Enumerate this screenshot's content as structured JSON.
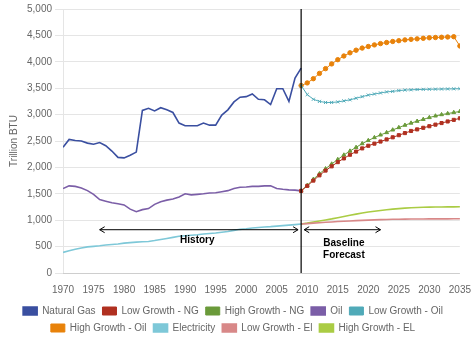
{
  "chart_data": {
    "type": "line",
    "ylabel": "Trillion BTU",
    "xlim": [
      1970,
      2035
    ],
    "ylim": [
      0,
      5000
    ],
    "xticks": [
      1970,
      1975,
      1980,
      1985,
      1990,
      1995,
      2000,
      2005,
      2010,
      2015,
      2020,
      2025,
      2030,
      2035
    ],
    "yticks": [
      0,
      500,
      {
        "value": 1000,
        "label": "1,000"
      },
      {
        "value": 1500,
        "label": "1,500"
      },
      {
        "value": 2000,
        "label": "2,000"
      },
      {
        "value": 2500,
        "label": "2,500"
      },
      {
        "value": 3000,
        "label": "3,000"
      },
      {
        "value": 3500,
        "label": "3,500"
      },
      {
        "value": 4000,
        "label": "4,000"
      },
      {
        "value": 4500,
        "label": "4,500"
      },
      {
        "value": 5000,
        "label": "5,000"
      }
    ],
    "grid": "y",
    "legend": "bottom",
    "vline": 2009,
    "arrows": [
      {
        "x": [
          1976,
          2008.5
        ],
        "y": 820
      },
      {
        "x": [
          2009.5,
          2022
        ],
        "y": 820
      }
    ],
    "annotations": [
      {
        "text": "History",
        "x": 1992,
        "y": 750
      },
      {
        "text": "Baseline\nForecast",
        "x": 2016,
        "y": 700
      }
    ],
    "series": [
      {
        "name": "Natural Gas",
        "color": "#3a4fa0",
        "x": [
          1970,
          1971,
          1972,
          1973,
          1974,
          1975,
          1976,
          1977,
          1978,
          1979,
          1980,
          1981,
          1982,
          1983,
          1984,
          1985,
          1986,
          1987,
          1988,
          1989,
          1990,
          1991,
          1992,
          1993,
          1994,
          1995,
          1996,
          1997,
          1998,
          1999,
          2000,
          2001,
          2002,
          2003,
          2004,
          2005,
          2006,
          2007,
          2008,
          2009
        ],
        "values": [
          2380,
          2530,
          2510,
          2500,
          2460,
          2440,
          2470,
          2410,
          2310,
          2190,
          2180,
          2230,
          2290,
          3080,
          3120,
          3070,
          3130,
          3090,
          3040,
          2840,
          2790,
          2790,
          2790,
          2840,
          2800,
          2800,
          2990,
          3090,
          3240,
          3330,
          3340,
          3390,
          3290,
          3280,
          3190,
          3490,
          3490,
          3250,
          3690,
          3880
        ]
      },
      {
        "name": "Low Growth - NG",
        "color": "#b03020",
        "marker": "square",
        "x": [
          2009,
          2010,
          2011,
          2012,
          2013,
          2014,
          2015,
          2016,
          2017,
          2018,
          2019,
          2020,
          2021,
          2022,
          2023,
          2024,
          2025,
          2026,
          2027,
          2028,
          2029,
          2030,
          2031,
          2032,
          2033,
          2034,
          2035
        ],
        "values": [
          1555,
          1650,
          1750,
          1850,
          1940,
          2020,
          2100,
          2170,
          2240,
          2300,
          2360,
          2410,
          2450,
          2490,
          2530,
          2570,
          2610,
          2650,
          2690,
          2720,
          2750,
          2780,
          2810,
          2840,
          2870,
          2900,
          2930
        ]
      },
      {
        "name": "High Growth - NG",
        "color": "#6a9a3a",
        "marker": "triangle",
        "x": [
          2009,
          2010,
          2011,
          2012,
          2013,
          2014,
          2015,
          2016,
          2017,
          2018,
          2019,
          2020,
          2021,
          2022,
          2023,
          2024,
          2025,
          2026,
          2027,
          2028,
          2029,
          2030,
          2031,
          2032,
          2033,
          2034,
          2035
        ],
        "values": [
          1555,
          1660,
          1775,
          1880,
          1975,
          2065,
          2150,
          2235,
          2310,
          2380,
          2450,
          2510,
          2565,
          2615,
          2660,
          2710,
          2755,
          2800,
          2840,
          2875,
          2910,
          2945,
          2975,
          3000,
          3020,
          3040,
          3060
        ]
      },
      {
        "name": "Oil",
        "color": "#7b5ea7",
        "x": [
          1970,
          1971,
          1972,
          1973,
          1974,
          1975,
          1976,
          1977,
          1978,
          1979,
          1980,
          1981,
          1982,
          1983,
          1984,
          1985,
          1986,
          1987,
          1988,
          1989,
          1990,
          1991,
          1992,
          1993,
          1994,
          1995,
          1996,
          1997,
          1998,
          1999,
          2000,
          2001,
          2002,
          2003,
          2004,
          2005,
          2006,
          2007,
          2008,
          2009
        ],
        "values": [
          1600,
          1650,
          1640,
          1610,
          1560,
          1490,
          1390,
          1360,
          1330,
          1310,
          1290,
          1210,
          1160,
          1200,
          1220,
          1300,
          1350,
          1380,
          1400,
          1440,
          1500,
          1480,
          1490,
          1500,
          1515,
          1520,
          1540,
          1560,
          1600,
          1625,
          1630,
          1640,
          1640,
          1650,
          1650,
          1600,
          1585,
          1575,
          1570,
          1555
        ]
      },
      {
        "name": "Low Growth - Oil",
        "color": "#50aab8",
        "marker": "x",
        "x": [
          2009,
          2010,
          2011,
          2012,
          2013,
          2014,
          2015,
          2016,
          2017,
          2018,
          2019,
          2020,
          2021,
          2022,
          2023,
          2024,
          2025,
          2026,
          2027,
          2028,
          2029,
          2030,
          2031,
          2032,
          2033,
          2034,
          2035
        ],
        "values": [
          3550,
          3380,
          3290,
          3250,
          3230,
          3230,
          3240,
          3260,
          3280,
          3310,
          3340,
          3370,
          3390,
          3410,
          3430,
          3440,
          3455,
          3465,
          3470,
          3475,
          3478,
          3480,
          3482,
          3484,
          3486,
          3488,
          3490
        ]
      },
      {
        "name": "High Growth - Oil",
        "color": "#e8820a",
        "marker": "circle",
        "x": [
          2009,
          2010,
          2011,
          2012,
          2013,
          2014,
          2015,
          2016,
          2017,
          2018,
          2019,
          2020,
          2021,
          2022,
          2023,
          2024,
          2025,
          2026,
          2027,
          2028,
          2029,
          2030,
          2031,
          2032,
          2033,
          2034,
          2035
        ],
        "values": [
          3550,
          3600,
          3680,
          3780,
          3870,
          3960,
          4040,
          4110,
          4170,
          4220,
          4260,
          4290,
          4320,
          4345,
          4365,
          4385,
          4400,
          4415,
          4425,
          4435,
          4445,
          4455,
          4460,
          4465,
          4470,
          4475,
          4300
        ]
      },
      {
        "name": "Electricity",
        "color": "#7ec8d8",
        "x": [
          1970,
          1971,
          1972,
          1973,
          1974,
          1975,
          1976,
          1977,
          1978,
          1979,
          1980,
          1981,
          1982,
          1983,
          1984,
          1985,
          1986,
          1987,
          1988,
          1989,
          1990,
          1991,
          1992,
          1993,
          1994,
          1995,
          1996,
          1997,
          1998,
          1999,
          2000,
          2001,
          2002,
          2003,
          2004,
          2005,
          2006,
          2007,
          2008,
          2009
        ],
        "values": [
          390,
          420,
          450,
          475,
          495,
          505,
          515,
          530,
          540,
          550,
          565,
          575,
          585,
          593,
          598,
          615,
          635,
          655,
          675,
          695,
          705,
          715,
          725,
          738,
          748,
          758,
          772,
          787,
          807,
          827,
          837,
          852,
          862,
          872,
          878,
          887,
          897,
          907,
          917,
          928
        ]
      },
      {
        "name": "Low Growth - El",
        "color": "#d88888",
        "x": [
          2009,
          2010,
          2011,
          2012,
          2013,
          2014,
          2015,
          2016,
          2017,
          2018,
          2019,
          2020,
          2021,
          2022,
          2023,
          2024,
          2025,
          2026,
          2027,
          2028,
          2029,
          2030,
          2031,
          2032,
          2033,
          2034,
          2035
        ],
        "values": [
          928,
          935,
          944,
          952,
          960,
          967,
          974,
          980,
          986,
          992,
          997,
          1002,
          1006,
          1010,
          1014,
          1017,
          1019,
          1021,
          1022,
          1023,
          1024,
          1025,
          1025,
          1026,
          1026,
          1027,
          1027
        ]
      },
      {
        "name": "High Growth - EL",
        "color": "#aacc44",
        "x": [
          2009,
          2010,
          2011,
          2012,
          2013,
          2014,
          2015,
          2016,
          2017,
          2018,
          2019,
          2020,
          2021,
          2022,
          2023,
          2024,
          2025,
          2026,
          2027,
          2028,
          2029,
          2030,
          2031,
          2032,
          2033,
          2034,
          2035
        ],
        "values": [
          928,
          945,
          965,
          985,
          1005,
          1025,
          1048,
          1070,
          1093,
          1115,
          1137,
          1155,
          1170,
          1185,
          1198,
          1210,
          1220,
          1228,
          1235,
          1240,
          1244,
          1247,
          1249,
          1251,
          1252,
          1253,
          1254
        ]
      }
    ]
  }
}
